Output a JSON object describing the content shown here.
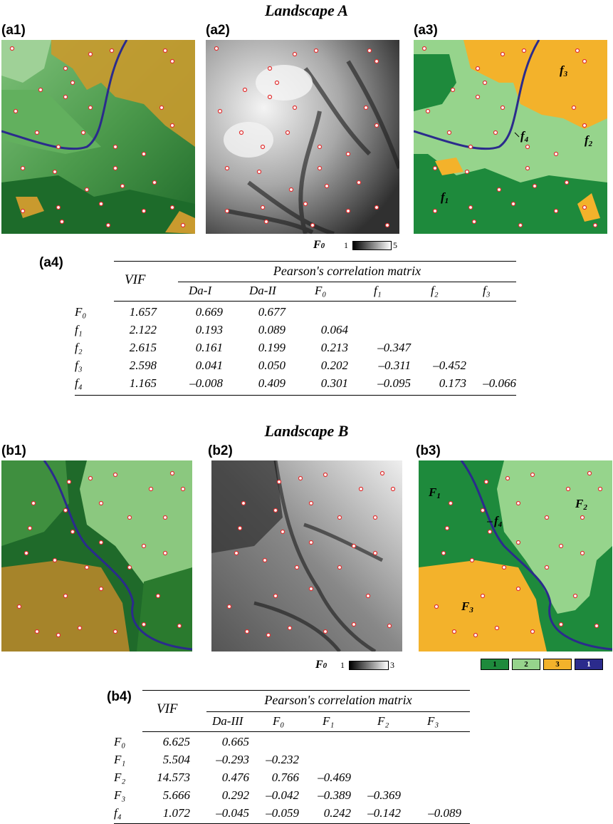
{
  "landscape_a": {
    "title": "Landscape A",
    "panels": {
      "a1": "(a1)",
      "a2": "(a2)",
      "a3": "(a3)",
      "a4": "(a4)"
    },
    "factor_labels": {
      "f1": "f",
      "f1_sub": "1",
      "f2": "f",
      "f2_sub": "2",
      "f3": "f",
      "f3_sub": "3",
      "f4": "f",
      "f4_sub": "4"
    },
    "colorbar": {
      "label": "F",
      "label_sub": "0",
      "min": "1",
      "max": "5"
    },
    "table": {
      "vif_header": "VIF",
      "matrix_header": "Pearson's correlation matrix",
      "columns": [
        "Da-I",
        "Da-II",
        "F₀",
        "f₁",
        "f₂",
        "f₃"
      ],
      "rows": [
        {
          "label": "F₀",
          "vif": "1.657",
          "values": [
            "0.669",
            "0.677",
            "",
            "",
            "",
            ""
          ]
        },
        {
          "label": "f₁",
          "vif": "2.122",
          "values": [
            "0.193",
            "0.089",
            "0.064",
            "",
            "",
            ""
          ]
        },
        {
          "label": "f₂",
          "vif": "2.615",
          "values": [
            "0.161",
            "0.199",
            "0.213",
            "–0.347",
            "",
            ""
          ]
        },
        {
          "label": "f₃",
          "vif": "2.598",
          "values": [
            "0.041",
            "0.050",
            "0.202",
            "–0.311",
            "–0.452",
            ""
          ]
        },
        {
          "label": "f₄",
          "vif": "1.165",
          "values": [
            "–0.008",
            "0.409",
            "0.301",
            "–0.095",
            "0.173",
            "–0.066"
          ]
        }
      ]
    }
  },
  "landscape_b": {
    "title": "Landscape B",
    "panels": {
      "b1": "(b1)",
      "b2": "(b2)",
      "b3": "(b3)",
      "b4": "(b4)"
    },
    "factor_labels": {
      "F1": "F",
      "F1_sub": "1",
      "F2": "F",
      "F2_sub": "2",
      "F3": "F",
      "F3_sub": "3",
      "f4": "f",
      "f4_sub": "4"
    },
    "colorbar": {
      "label": "F",
      "label_sub": "0",
      "min": "1",
      "max": "3"
    },
    "legend": [
      {
        "label": "1",
        "color": "#1e8a3c"
      },
      {
        "label": "2",
        "color": "#96d48c"
      },
      {
        "label": "3",
        "color": "#f3b22b"
      },
      {
        "label": "1",
        "color": "#2b2b8c"
      }
    ],
    "table": {
      "vif_header": "VIF",
      "matrix_header": "Pearson's correlation matrix",
      "columns": [
        "Da-III",
        "F₀",
        "F₁",
        "F₂",
        "F₃"
      ],
      "rows": [
        {
          "label": "F₀",
          "vif": "6.625",
          "values": [
            "0.665",
            "",
            "",
            "",
            ""
          ]
        },
        {
          "label": "F₁",
          "vif": "5.504",
          "values": [
            "–0.293",
            "–0.232",
            "",
            "",
            ""
          ]
        },
        {
          "label": "F₂",
          "vif": "14.573",
          "values": [
            "0.476",
            "0.766",
            "–0.469",
            "",
            ""
          ]
        },
        {
          "label": "F₃",
          "vif": "5.666",
          "values": [
            "0.292",
            "–0.042",
            "–0.389",
            "–0.369",
            ""
          ]
        },
        {
          "label": "f₄",
          "vif": "1.072",
          "values": [
            "–0.045",
            "–0.059",
            "0.242",
            "–0.142",
            "–0.089"
          ]
        }
      ]
    }
  },
  "colors": {
    "dark_green": "#1e8a3c",
    "light_green": "#96d48c",
    "orange": "#f3b22b",
    "river": "#2b2b8c",
    "point_fill": "#ffffff",
    "point_stroke": "#e03030"
  }
}
